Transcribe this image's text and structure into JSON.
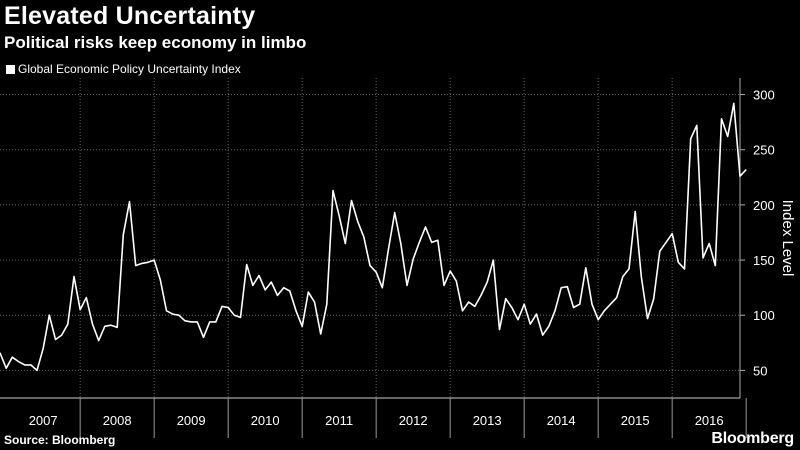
{
  "header": {
    "title": "Elevated Uncertainty",
    "subtitle": "Political risks keep economy in limbo"
  },
  "legend": {
    "label": "Global Economic Policy Uncertainty Index"
  },
  "footer": {
    "source": "Source: Bloomberg",
    "brand": "Bloomberg"
  },
  "colors": {
    "background": "#000000",
    "line": "#ffffff",
    "grid": "#666666"
  },
  "chart_data": {
    "type": "line",
    "title": "Elevated Uncertainty",
    "subtitle": "Political risks keep economy in limbo",
    "xlabel": "",
    "ylabel": "Index Level",
    "ylim": [
      25,
      315
    ],
    "yticks": [
      50,
      100,
      150,
      200,
      250,
      300
    ],
    "xlim": [
      0,
      120
    ],
    "years": [
      "2007",
      "2008",
      "2009",
      "2010",
      "2011",
      "2012",
      "2013",
      "2014",
      "2015",
      "2016"
    ],
    "year_starts": [
      1,
      13,
      25,
      37,
      49,
      61,
      73,
      85,
      97,
      109
    ],
    "series": [
      {
        "name": "Global Economic Policy Uncertainty Index",
        "start": "2006-12",
        "frequency": "monthly",
        "values": [
          66,
          52,
          62,
          58,
          55,
          55,
          50,
          70,
          100,
          78,
          82,
          92,
          135,
          105,
          116,
          92,
          77,
          90,
          91,
          89,
          173,
          203,
          145,
          147,
          148,
          150,
          132,
          104,
          101,
          100,
          95,
          94,
          94,
          80,
          94,
          94,
          108,
          107,
          100,
          98,
          146,
          127,
          136,
          123,
          130,
          118,
          125,
          122,
          104,
          90,
          121,
          112,
          83,
          110,
          213,
          190,
          165,
          204,
          185,
          171,
          145,
          139,
          125,
          160,
          193,
          165,
          127,
          151,
          166,
          180,
          166,
          168,
          127,
          140,
          131,
          104,
          112,
          108,
          118,
          130,
          150,
          87,
          115,
          107,
          96,
          110,
          92,
          101,
          82,
          90,
          104,
          125,
          126,
          107,
          110,
          143,
          110,
          96,
          104,
          110,
          116,
          135,
          142,
          194,
          135,
          97,
          115,
          158,
          166,
          174,
          148,
          142,
          260,
          272,
          152,
          165,
          145,
          278,
          262,
          292,
          226,
          232
        ]
      }
    ]
  }
}
